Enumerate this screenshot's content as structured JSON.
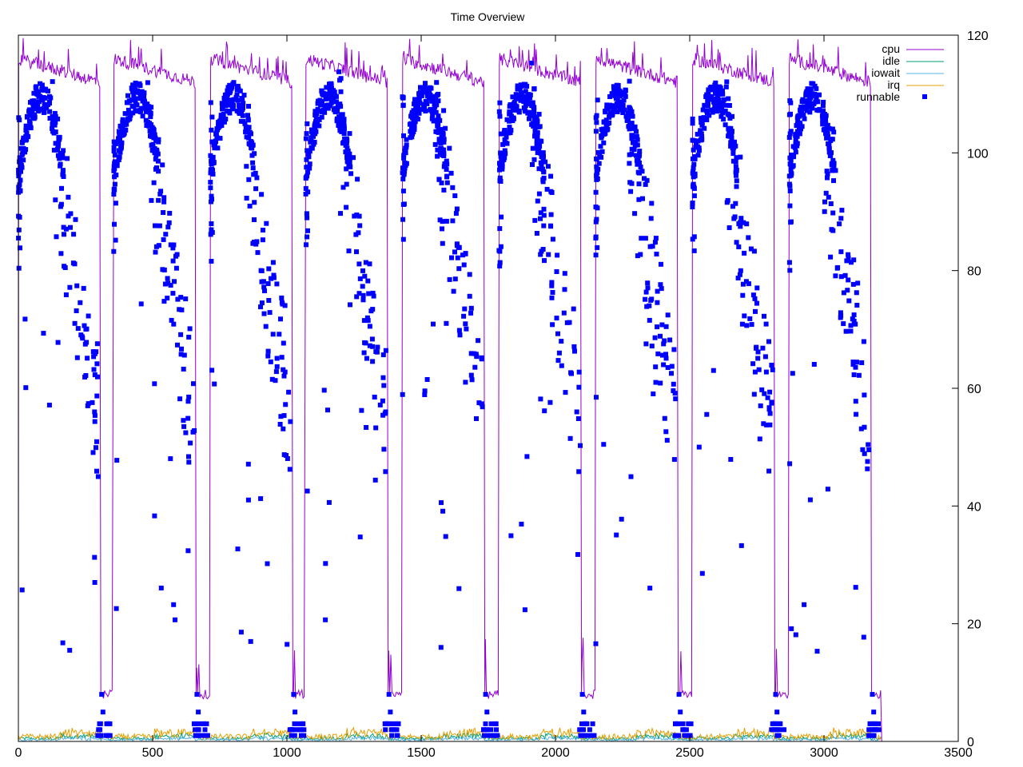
{
  "chart_data": {
    "type": "line",
    "title": "Time Overview",
    "xlabel": "",
    "ylabel": "",
    "xlim": [
      0,
      3500
    ],
    "ylim": [
      0,
      120
    ],
    "x_ticks": [
      0,
      500,
      1000,
      1500,
      2000,
      2500,
      3000,
      3500
    ],
    "y_ticks": [
      0,
      20,
      40,
      60,
      80,
      100,
      120
    ],
    "y_axis_side": "right",
    "grid": false,
    "legend_position": "top-right",
    "cycle_starts": [
      0,
      355,
      715,
      1070,
      1430,
      1790,
      2150,
      2510,
      2870
    ],
    "cycle_length": 305,
    "gap_cpu_level": 8,
    "end_x": 3215,
    "series": [
      {
        "name": "cpu",
        "color": "#9400d3",
        "style": "line",
        "active_level": 116
      },
      {
        "name": "idle",
        "color": "#009e73",
        "style": "line",
        "level": 0.5
      },
      {
        "name": "iowait",
        "color": "#56b4e9",
        "style": "line",
        "level": 0.3
      },
      {
        "name": "irq",
        "color": "#e69f00",
        "style": "line",
        "level": 0.8
      },
      {
        "name": "runnable",
        "color": "#0000ff",
        "style": "points"
      }
    ]
  }
}
